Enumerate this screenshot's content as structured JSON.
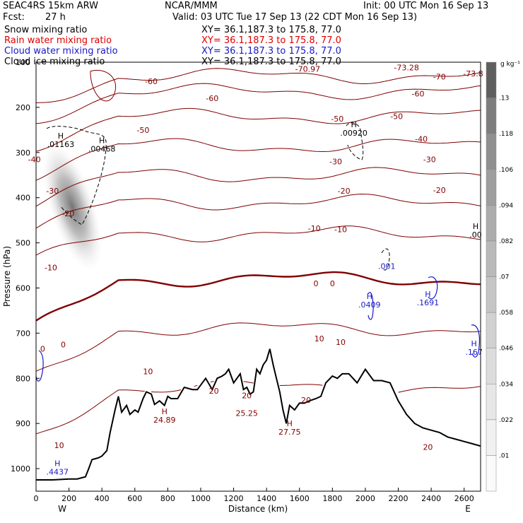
{
  "header": {
    "model": "SEAC4RS 15km ARW",
    "center": "NCAR/MMM",
    "init": "Init: 00 UTC Mon 16 Sep 13",
    "fcst_label": "Fcst:",
    "fcst_value": "27 h",
    "valid": "Valid: 03 UTC Tue 17 Sep 13 (22 CDT Mon 16 Sep 13)",
    "fields": [
      {
        "name": "Snow mixing ratio",
        "color": "#000000"
      },
      {
        "name": "Rain water mixing ratio",
        "color": "#e00000"
      },
      {
        "name": "Cloud water mixing ratio",
        "color": "#1818c8"
      },
      {
        "name": "Cloud ice mixing ratio",
        "color": "#000000"
      }
    ],
    "xy_text": "XY=  36.1,187.3 to 175.8, 77.0"
  },
  "chart_data": {
    "type": "cross-section",
    "xlabel": "Distance (km)",
    "ylabel": "Pressure (hPa)",
    "xlim": [
      0,
      2700
    ],
    "ylim": [
      1050,
      100
    ],
    "x_ticks": [
      0,
      200,
      400,
      600,
      800,
      1000,
      1200,
      1400,
      1600,
      1800,
      2000,
      2200,
      2400,
      2600
    ],
    "y_ticks": [
      100,
      200,
      300,
      400,
      500,
      600,
      700,
      800,
      900,
      1000
    ],
    "y_tick_labels": [
      "100",
      "200",
      "300",
      "400",
      "500",
      "600",
      "700",
      "800",
      "900",
      "1000"
    ],
    "end_labels": {
      "left": "W",
      "right": "E"
    },
    "temperature_contours_c": [
      {
        "level": -70,
        "label": "-70",
        "pressure_hpa": 130
      },
      {
        "level": -60,
        "label": "-60",
        "pressure_hpa": 165
      },
      {
        "level": -50,
        "label": "-50",
        "pressure_hpa": 220
      },
      {
        "level": -40,
        "label": "-40",
        "pressure_hpa": 285
      },
      {
        "level": -30,
        "label": "-30",
        "pressure_hpa": 350
      },
      {
        "level": -20,
        "label": "-20",
        "pressure_hpa": 410
      },
      {
        "level": -10,
        "label": "-10",
        "pressure_hpa": 480
      },
      {
        "level": 0,
        "label": "0",
        "pressure_hpa": 580
      },
      {
        "level": 10,
        "label": "10",
        "pressure_hpa": 690
      },
      {
        "level": 20,
        "label": "20",
        "pressure_hpa": 820
      }
    ],
    "contour_labels": [
      {
        "text": "-70.97",
        "x": 1650,
        "p": 115
      },
      {
        "text": "-73.28",
        "x": 2250,
        "p": 112
      },
      {
        "text": "-73.8",
        "x": 2655,
        "p": 125
      },
      {
        "text": "-70",
        "x": 2450,
        "p": 132
      },
      {
        "text": "-60",
        "x": 700,
        "p": 142
      },
      {
        "text": "-60",
        "x": 1070,
        "p": 180
      },
      {
        "text": "-60",
        "x": 2320,
        "p": 170
      },
      {
        "text": "-50",
        "x": 650,
        "p": 250
      },
      {
        "text": "-50",
        "x": 1830,
        "p": 225
      },
      {
        "text": "-50",
        "x": 2190,
        "p": 220
      },
      {
        "text": "-40",
        "x": 2340,
        "p": 270
      },
      {
        "text": "-40",
        "x": -10,
        "p": 315
      },
      {
        "text": "-30",
        "x": 1820,
        "p": 320
      },
      {
        "text": "-30",
        "x": 2390,
        "p": 315
      },
      {
        "text": "-30",
        "x": 100,
        "p": 385
      },
      {
        "text": "-20",
        "x": 1870,
        "p": 385
      },
      {
        "text": "-20",
        "x": 2450,
        "p": 383
      },
      {
        "text": "-20",
        "x": 195,
        "p": 435
      },
      {
        "text": "-10",
        "x": 1690,
        "p": 468
      },
      {
        "text": "-10",
        "x": 1850,
        "p": 470
      },
      {
        "text": "-10",
        "x": 90,
        "p": 555
      },
      {
        "text": "0",
        "x": 1700,
        "p": 590
      },
      {
        "text": "0",
        "x": 1800,
        "p": 590
      },
      {
        "text": "0",
        "x": 40,
        "p": 735
      },
      {
        "text": "0",
        "x": 165,
        "p": 725
      },
      {
        "text": "10",
        "x": 1720,
        "p": 712
      },
      {
        "text": "10",
        "x": 1850,
        "p": 720
      },
      {
        "text": "10",
        "x": 680,
        "p": 785
      },
      {
        "text": "20",
        "x": 1080,
        "p": 828
      },
      {
        "text": "20",
        "x": 1280,
        "p": 838
      },
      {
        "text": "20",
        "x": 1640,
        "p": 848
      },
      {
        "text": "20",
        "x": 2380,
        "p": 952
      },
      {
        "text": "10",
        "x": 140,
        "p": 948
      }
    ],
    "zero_isotherm_hpa": 590,
    "terrain": {
      "x": [
        0,
        100,
        200,
        250,
        300,
        320,
        340,
        360,
        380,
        400,
        430,
        450,
        480,
        500,
        520,
        550,
        570,
        600,
        620,
        650,
        670,
        700,
        720,
        750,
        780,
        800,
        820,
        860,
        900,
        950,
        980,
        1000,
        1030,
        1070,
        1100,
        1130,
        1150,
        1170,
        1200,
        1220,
        1240,
        1260,
        1280,
        1300,
        1320,
        1340,
        1360,
        1380,
        1400,
        1420,
        1440,
        1460,
        1480,
        1500,
        1520,
        1540,
        1570,
        1600,
        1630,
        1660,
        1700,
        1730,
        1760,
        1800,
        1830,
        1860,
        1900,
        1950,
        2000,
        2050,
        2100,
        2150,
        2200,
        2250,
        2300,
        2350,
        2400,
        2450,
        2500,
        2550,
        2600,
        2650,
        2700
      ],
      "p_hpa": [
        1025,
        1025,
        1023,
        1023,
        1018,
        1000,
        980,
        978,
        976,
        972,
        960,
        920,
        870,
        840,
        875,
        860,
        880,
        870,
        875,
        845,
        830,
        835,
        858,
        850,
        860,
        840,
        845,
        845,
        820,
        825,
        825,
        815,
        800,
        825,
        800,
        795,
        790,
        780,
        810,
        800,
        790,
        825,
        820,
        835,
        830,
        780,
        790,
        770,
        760,
        735,
        770,
        800,
        830,
        870,
        900,
        860,
        870,
        855,
        855,
        850,
        845,
        840,
        810,
        795,
        800,
        790,
        790,
        810,
        780,
        805,
        805,
        810,
        850,
        880,
        900,
        910,
        915,
        920,
        930,
        935,
        940,
        945,
        950
      ]
    },
    "colorbar": {
      "title": "g kg⁻¹",
      "labels": [
        ".01",
        ".022",
        ".034",
        ".046",
        ".058",
        ".07",
        ".082",
        ".094",
        ".106",
        ".118",
        ".13"
      ],
      "colors": [
        "#fbfbfb",
        "#f1f1f1",
        "#e7e7e7",
        "#dcdcdc",
        "#d1d1d1",
        "#c5c5c5",
        "#b9b9b9",
        "#acacac",
        "#9e9e9e",
        "#8f8f8f",
        "#7d7d7d",
        "#5f5f5f"
      ]
    },
    "maxima_markers": [
      {
        "symbol": "H",
        "value": ".01163",
        "x": 150,
        "p": 285,
        "color": "#000000"
      },
      {
        "symbol": "H",
        "value": ".00468",
        "x": 400,
        "p": 295,
        "color": "#000000"
      },
      {
        "symbol": "H",
        "value": ".00920",
        "x": 1930,
        "p": 260,
        "color": "#000000"
      },
      {
        "symbol": "H",
        "value": ".00",
        "x": 2670,
        "p": 485,
        "color": "#000000"
      },
      {
        "symbol": "",
        "value": ".001",
        "x": 2130,
        "p": 555,
        "color": "#1818c8"
      },
      {
        "symbol": "H",
        "value": ".0409",
        "x": 2025,
        "p": 640,
        "color": "#1818c8"
      },
      {
        "symbol": "H",
        "value": ".1691",
        "x": 2380,
        "p": 635,
        "color": "#1818c8"
      },
      {
        "symbol": "H",
        "value": ".167",
        "x": 2660,
        "p": 745,
        "color": "#1818c8"
      },
      {
        "symbol": "H",
        "value": ".4437",
        "x": 130,
        "p": 1010,
        "color": "#1818c8"
      },
      {
        "symbol": "H",
        "value": "24.89",
        "x": 780,
        "p": 895,
        "color": "#800000"
      },
      {
        "symbol": "",
        "value": "25.25",
        "x": 1280,
        "p": 880,
        "color": "#800000"
      },
      {
        "symbol": "H",
        "value": "27.75",
        "x": 1540,
        "p": 922,
        "color": "#800000"
      }
    ],
    "snow_field": {
      "label": "Snow mixing ratio",
      "x": 220,
      "p": 420,
      "max_gkg": 0.13
    }
  }
}
